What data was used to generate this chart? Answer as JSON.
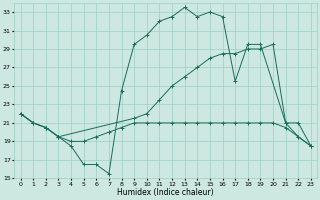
{
  "xlabel": "Humidex (Indice chaleur)",
  "bg_color": "#cce8e0",
  "grid_color": "#9ecfc4",
  "line_color": "#1a6b5e",
  "xlim": [
    -0.5,
    23.5
  ],
  "ylim": [
    15,
    34
  ],
  "yticks": [
    15,
    17,
    19,
    21,
    23,
    25,
    27,
    29,
    31,
    33
  ],
  "xticks": [
    0,
    1,
    2,
    3,
    4,
    5,
    6,
    7,
    8,
    9,
    10,
    11,
    12,
    13,
    14,
    15,
    16,
    17,
    18,
    19,
    20,
    21,
    22,
    23
  ],
  "series": [
    {
      "x": [
        0,
        1,
        2,
        3,
        4,
        5,
        6,
        7,
        8,
        9,
        10,
        11,
        12,
        13,
        14,
        15,
        16,
        17,
        18,
        19,
        21,
        22,
        23
      ],
      "y": [
        22,
        21,
        20.5,
        19.5,
        18.5,
        16.5,
        16.5,
        15.5,
        24.5,
        29.5,
        30.5,
        32,
        32.5,
        33.5,
        32.5,
        33,
        32.5,
        25.5,
        29.5,
        29.5,
        21,
        21,
        18.5
      ]
    },
    {
      "x": [
        0,
        1,
        2,
        3,
        4,
        5,
        6,
        7,
        8,
        9,
        10,
        11,
        12,
        13,
        14,
        15,
        16,
        17,
        18,
        19,
        20,
        21,
        22,
        23
      ],
      "y": [
        22,
        21,
        20.5,
        19.5,
        19,
        19,
        19.5,
        20,
        20.5,
        21,
        21,
        21,
        21,
        21,
        21,
        21,
        21,
        21,
        21,
        21,
        21,
        20.5,
        19.5,
        18.5
      ]
    },
    {
      "x": [
        0,
        1,
        2,
        3,
        9,
        10,
        11,
        12,
        13,
        14,
        15,
        16,
        17,
        18,
        19,
        20,
        21,
        22,
        23
      ],
      "y": [
        22,
        21,
        20.5,
        19.5,
        21.5,
        22,
        23.5,
        25,
        26,
        27,
        28,
        28.5,
        28.5,
        29,
        29,
        29.5,
        21,
        19.5,
        18.5
      ]
    }
  ]
}
